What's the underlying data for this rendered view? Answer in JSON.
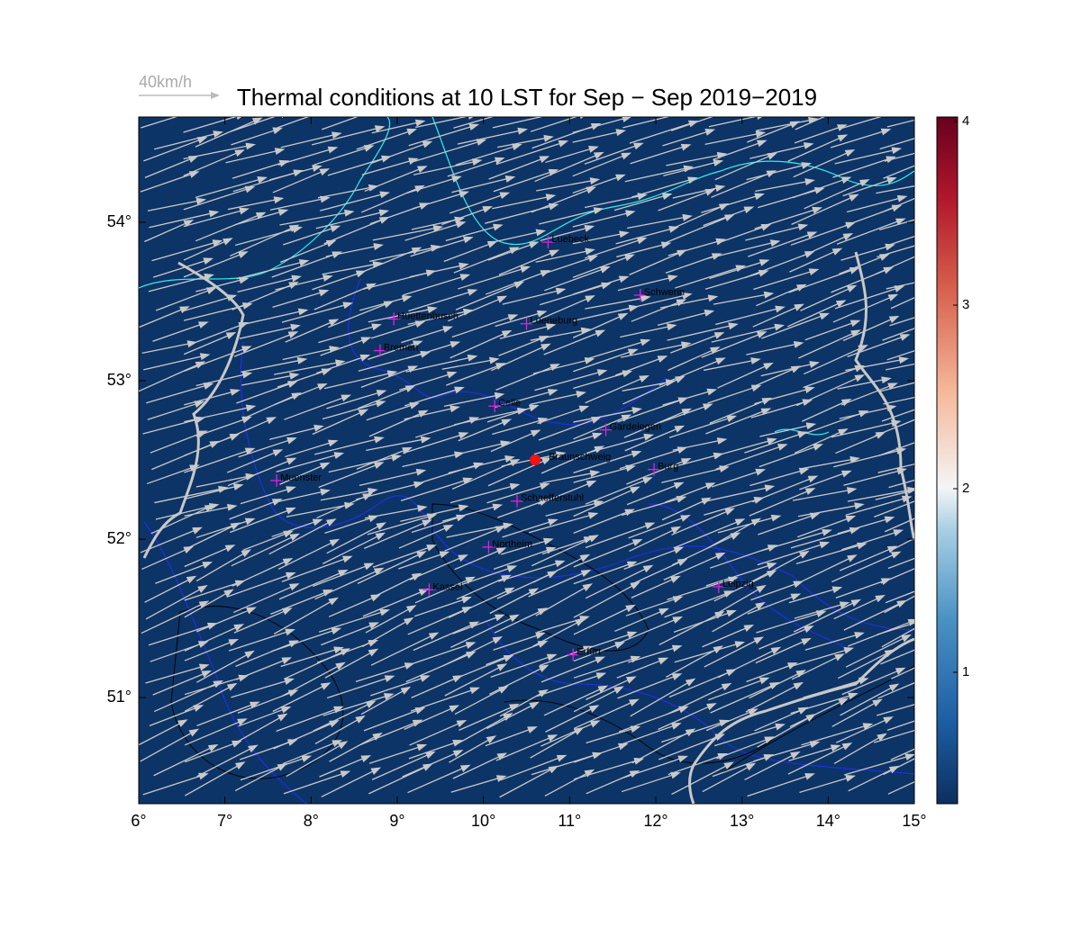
{
  "title": "Thermal conditions at 10 LST for Sep − Sep  2019−2019",
  "wind_scale": "40km/h",
  "map": {
    "xlim": [
      6,
      15
    ],
    "ylim": [
      50.33,
      54.665
    ],
    "xticks": [
      {
        "value": 6,
        "label": "6°"
      },
      {
        "value": 7,
        "label": "7°"
      },
      {
        "value": 8,
        "label": "8°"
      },
      {
        "value": 9,
        "label": "9°"
      },
      {
        "value": 10,
        "label": "10°"
      },
      {
        "value": 11,
        "label": "11°"
      },
      {
        "value": 12,
        "label": "12°"
      },
      {
        "value": 13,
        "label": "13°"
      },
      {
        "value": 14,
        "label": "14°"
      },
      {
        "value": 15,
        "label": "15°"
      }
    ],
    "yticks": [
      {
        "value": 51,
        "label": "51°"
      },
      {
        "value": 52,
        "label": "52°"
      },
      {
        "value": 53,
        "label": "53°"
      },
      {
        "value": 54,
        "label": "54°"
      }
    ]
  },
  "colorbar": {
    "lim": [
      0.284,
      4.025
    ],
    "ticks": [
      1,
      2,
      3,
      4
    ]
  },
  "cities": [
    {
      "name": "Luebeck",
      "lon": 10.75,
      "lat": 53.875
    },
    {
      "name": "Schwerin",
      "lon": 11.82,
      "lat": 53.54
    },
    {
      "name": "Huettenbusch",
      "lon": 8.96,
      "lat": 53.39
    },
    {
      "name": "Lueneburg",
      "lon": 10.5,
      "lat": 53.36
    },
    {
      "name": "Bremen",
      "lon": 8.8,
      "lat": 53.19
    },
    {
      "name": "Celle",
      "lon": 10.13,
      "lat": 52.84
    },
    {
      "name": "Gardelegen",
      "lon": 11.42,
      "lat": 52.69
    },
    {
      "name": "Burg",
      "lon": 11.98,
      "lat": 52.44
    },
    {
      "name": "Muenster",
      "lon": 7.6,
      "lat": 52.37
    },
    {
      "name": "Schaefferstuhl",
      "lon": 10.39,
      "lat": 52.24
    },
    {
      "name": "Northeim",
      "lon": 10.06,
      "lat": 51.95
    },
    {
      "name": "Kassel",
      "lon": 9.37,
      "lat": 51.68
    },
    {
      "name": "Leipzig",
      "lon": 12.73,
      "lat": 51.7
    },
    {
      "name": "Erfurt",
      "lon": 11.04,
      "lat": 51.27
    }
  ],
  "site": {
    "name": "Braunschweig",
    "lon": 10.6,
    "lat": 52.5
  }
}
